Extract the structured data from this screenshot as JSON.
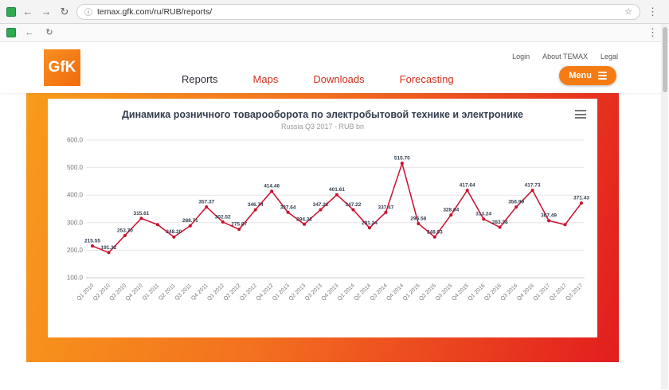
{
  "browser": {
    "url": "temax.gfk.com/ru/RUB/reports/"
  },
  "icons": {
    "back": "←",
    "forward": "→",
    "reload": "↻",
    "info": "ⓘ",
    "star": "☆",
    "more": "⋮"
  },
  "header": {
    "logo_text": "GfK",
    "nav": [
      {
        "label": "Reports",
        "active": true
      },
      {
        "label": "Maps",
        "active": false
      },
      {
        "label": "Downloads",
        "active": false
      },
      {
        "label": "Forecasting",
        "active": false
      }
    ],
    "top_links": [
      "Login",
      "About TEMAX",
      "Legal"
    ],
    "menu_button": "Menu"
  },
  "chart_data": {
    "type": "line",
    "title": "Динамика розничного товарооборота по электробытовой технике и электронике",
    "subtitle": "Russia Q3 2017 - RUB bn",
    "ylabel": "",
    "xlabel": "",
    "ylim": [
      100,
      600
    ],
    "ytick_step": 100,
    "grid": true,
    "legend": "none",
    "series_color": "#c8102e",
    "categories": [
      "Q1 2010",
      "Q2 2010",
      "Q3 2010",
      "Q4 2010",
      "Q1 2011",
      "Q2 2011",
      "Q3 2011",
      "Q4 2011",
      "Q1 2012",
      "Q2 2012",
      "Q3 2012",
      "Q4 2012",
      "Q1 2013",
      "Q2 2013",
      "Q3 2013",
      "Q4 2013",
      "Q1 2014",
      "Q2 2014",
      "Q3 2014",
      "Q4 2014",
      "Q1 2015",
      "Q2 2015",
      "Q3 2015",
      "Q4 2015",
      "Q1 2016",
      "Q2 2016",
      "Q3 2016",
      "Q4 2016",
      "Q1 2017",
      "Q2 2017",
      "Q3 2017"
    ],
    "values": [
      215.55,
      191.32,
      253.7,
      315.61,
      293.0,
      248.2,
      288.71,
      357.37,
      302.52,
      275.87,
      346.74,
      414.46,
      337.64,
      294.32,
      347.22,
      401.61,
      347.22,
      281.24,
      337.47,
      515.7,
      296.58,
      248.03,
      328.04,
      417.64,
      313.24,
      283.38,
      356.99,
      417.73,
      307.49,
      293.0,
      371.43
    ],
    "data_labels": [
      "215.55",
      "191.32",
      "253.70",
      "315.61",
      null,
      "248.20",
      "288.71",
      "357.37",
      "302.52",
      "275.87",
      "346.74",
      "414.46",
      "337.64",
      "294.32",
      "347.22",
      "401.61",
      "347.22",
      "281.24",
      "337.47",
      "515.70",
      "296.58",
      "248.03",
      "328.04",
      "417.64",
      "313.24",
      "283.38",
      "356.99",
      "417.73",
      "307.49",
      null,
      "371.43"
    ]
  }
}
